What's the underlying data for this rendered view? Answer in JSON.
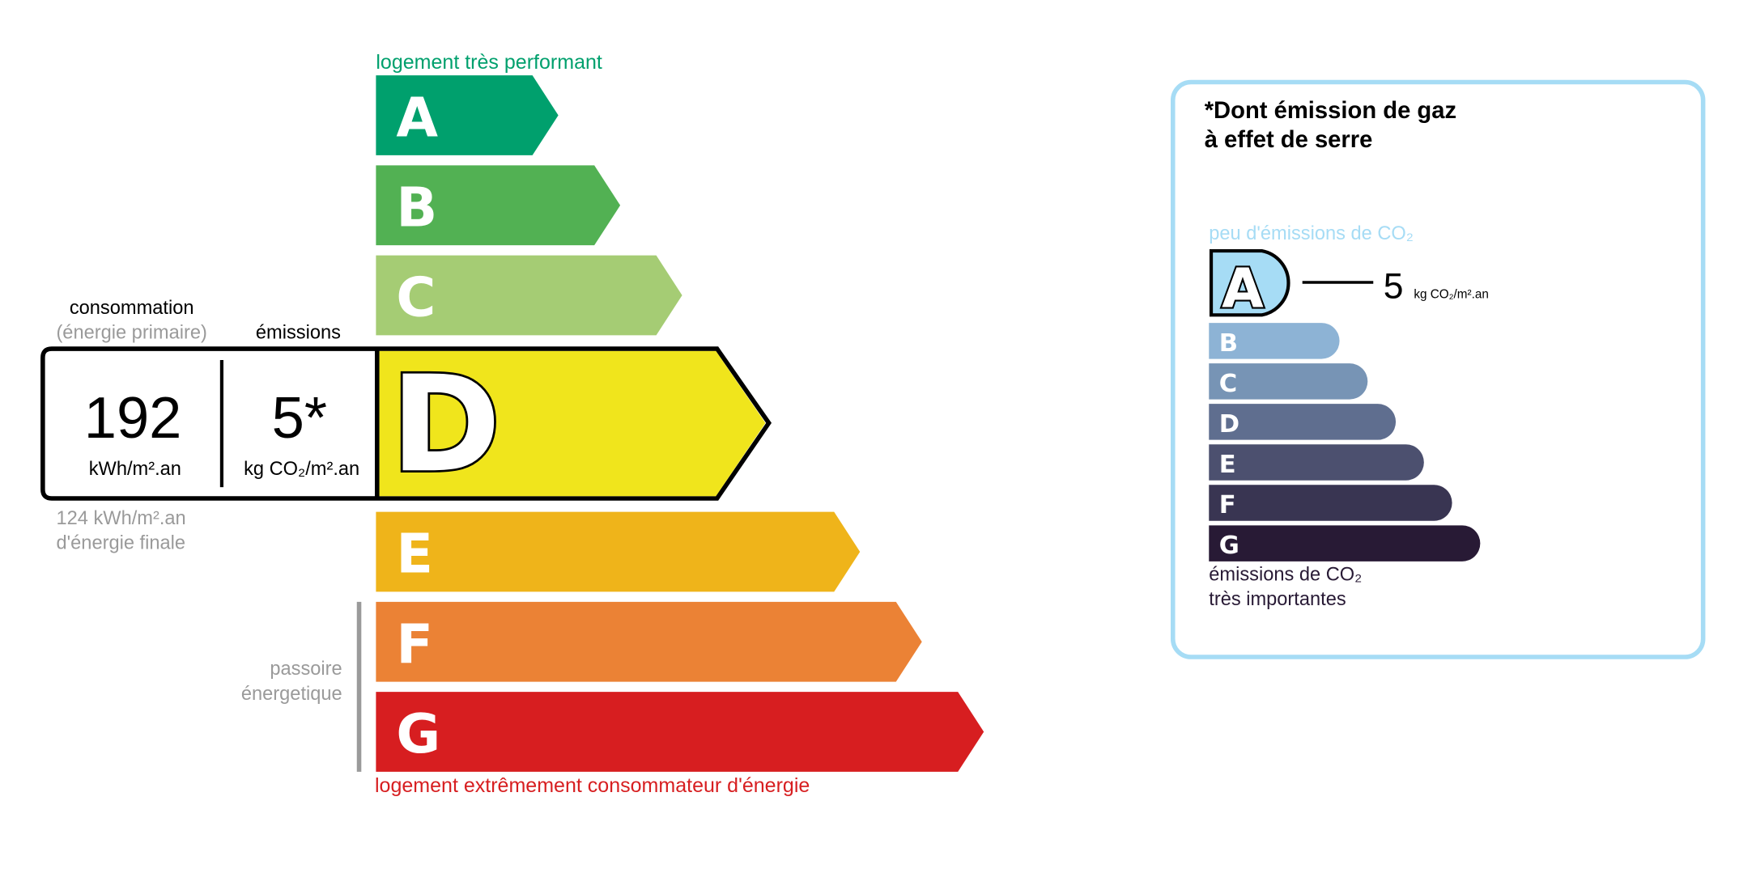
{
  "energy": {
    "top_label": "logement très performant",
    "bottom_label": "logement extrêmement consommateur d'énergie",
    "passoire_label": [
      "passoire",
      "énergetique"
    ],
    "classes": [
      {
        "letter": "A",
        "color": "#00a06d"
      },
      {
        "letter": "B",
        "color": "#52b153"
      },
      {
        "letter": "C",
        "color": "#a5cc74"
      },
      {
        "letter": "D",
        "color": "#f0e51c"
      },
      {
        "letter": "E",
        "color": "#efb41a"
      },
      {
        "letter": "F",
        "color": "#eb8235"
      },
      {
        "letter": "G",
        "color": "#d71e20"
      }
    ],
    "current_class": "D",
    "consumption_header": "consommation",
    "consumption_subheader": "(énergie primaire)",
    "emissions_header": "émissions",
    "consumption_value": "192",
    "consumption_unit": "kWh/m².an",
    "emissions_value": "5*",
    "emissions_unit": "kg CO₂/m².an",
    "final_energy_value": "124 kWh/m².an",
    "final_energy_label": "d'énergie finale"
  },
  "ges": {
    "title_line1": "*Dont émission de gaz",
    "title_line2": "à effet de serre",
    "top_label": "peu d'émissions de CO₂",
    "bottom_label_line1": "émissions de CO₂",
    "bottom_label_line2": "très importantes",
    "current_class": "A",
    "value": "5",
    "unit": "kg CO₂/m².an",
    "border_color": "#a6dcf5",
    "classes": [
      {
        "letter": "A",
        "color": "#a6dcf5"
      },
      {
        "letter": "B",
        "color": "#8db3d5"
      },
      {
        "letter": "C",
        "color": "#7794b5"
      },
      {
        "letter": "D",
        "color": "#5f6e8f"
      },
      {
        "letter": "E",
        "color": "#4c506f"
      },
      {
        "letter": "F",
        "color": "#393552"
      },
      {
        "letter": "G",
        "color": "#281a35"
      }
    ]
  }
}
